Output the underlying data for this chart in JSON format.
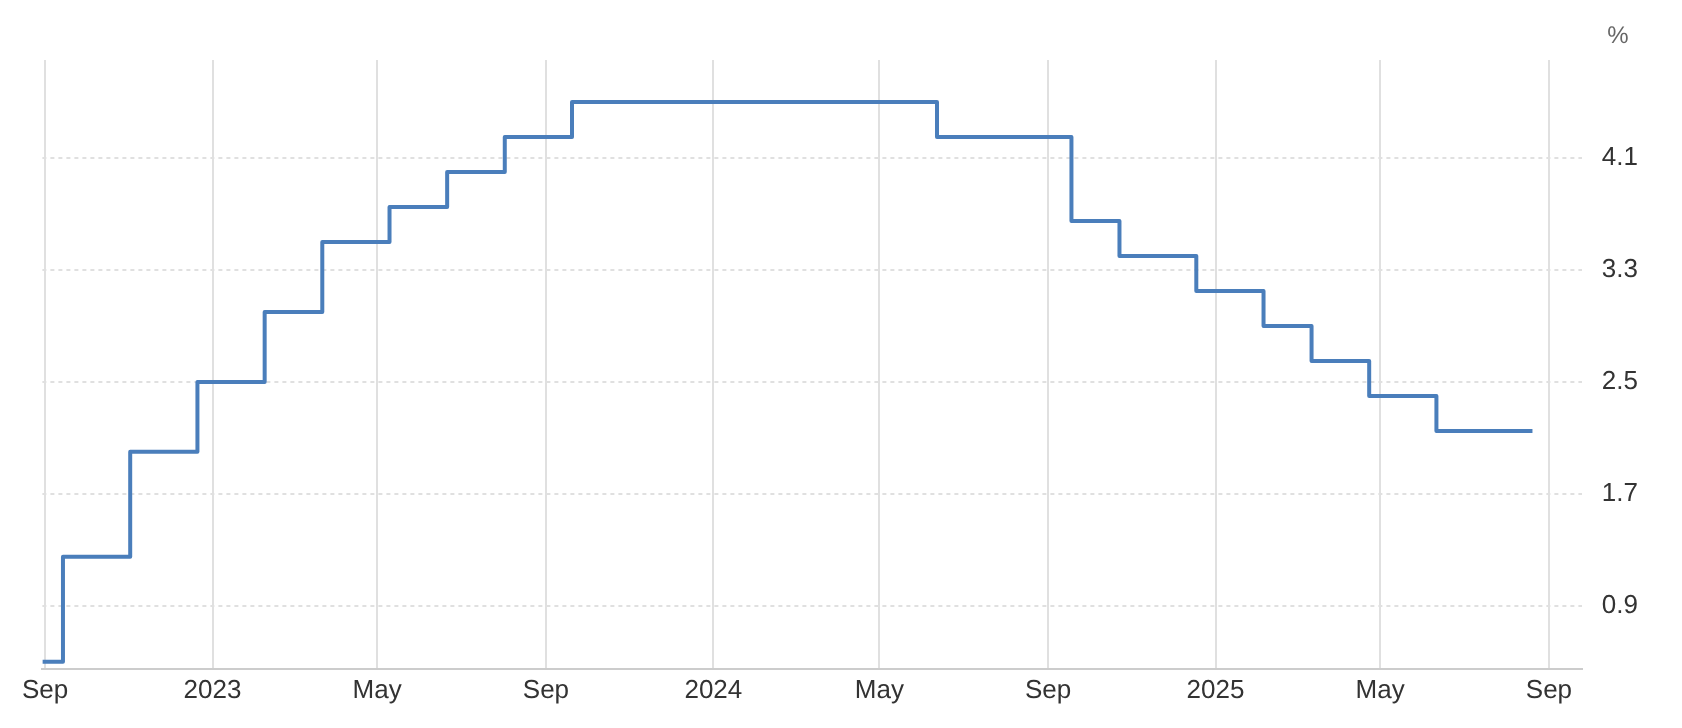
{
  "chart_data": {
    "type": "step",
    "ylabel": "%",
    "x": [
      "2022-08-30",
      "2022-09-14",
      "2022-11-02",
      "2022-12-21",
      "2023-02-08",
      "2023-03-22",
      "2023-05-10",
      "2023-06-21",
      "2023-08-02",
      "2023-09-20",
      "2024-06-12",
      "2024-09-18",
      "2024-10-23",
      "2024-12-18",
      "2025-02-05",
      "2025-03-12",
      "2025-04-23",
      "2025-06-11",
      "2025-08-20"
    ],
    "series": [
      {
        "color": "#4a7ebb",
        "values": [
          0.5,
          1.25,
          2.0,
          2.5,
          3.0,
          3.5,
          3.75,
          4.0,
          4.25,
          4.5,
          4.25,
          3.65,
          3.4,
          3.15,
          2.9,
          2.65,
          2.4,
          2.15,
          2.15
        ]
      }
    ],
    "xlim": [
      "2022-08-30",
      "2025-09-25"
    ],
    "xticks": [
      {
        "value": "2022-09-01",
        "label": "Sep"
      },
      {
        "value": "2023-01-01",
        "label": "2023"
      },
      {
        "value": "2023-05-01",
        "label": "May"
      },
      {
        "value": "2023-09-01",
        "label": "Sep"
      },
      {
        "value": "2024-01-01",
        "label": "2024"
      },
      {
        "value": "2024-05-01",
        "label": "May"
      },
      {
        "value": "2024-09-01",
        "label": "Sep"
      },
      {
        "value": "2025-01-01",
        "label": "2025"
      },
      {
        "value": "2025-05-01",
        "label": "May"
      },
      {
        "value": "2025-09-01",
        "label": "Sep"
      }
    ],
    "ylim": [
      0.45,
      4.8
    ],
    "yticks": [
      0.9,
      1.7,
      2.5,
      3.3,
      4.1
    ],
    "grid": true,
    "legend": false,
    "line_style": "solid",
    "marker": "none"
  }
}
